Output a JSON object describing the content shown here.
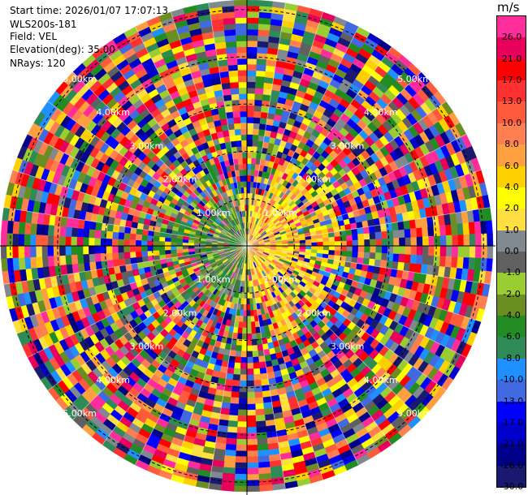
{
  "header": {
    "start_time": "Start time: 2026/01/07 17:07:13",
    "instrument": "WLS200s-181",
    "field": "Field: VEL",
    "elevation": "Elevation(deg): 35.00",
    "nrays": "NRays: 120"
  },
  "colorbar": {
    "unit": "m/s",
    "levels": [
      {
        "label": "26.0",
        "color": "#ff2d9a"
      },
      {
        "label": "21.0",
        "color": "#e8005a"
      },
      {
        "label": "17.0",
        "color": "#ff0000"
      },
      {
        "label": "13.0",
        "color": "#ff3030"
      },
      {
        "label": "10.0",
        "color": "#ff5a3c"
      },
      {
        "label": "8.0",
        "color": "#ff7f50"
      },
      {
        "label": "6.0",
        "color": "#ffa040"
      },
      {
        "label": "4.0",
        "color": "#ffd000"
      },
      {
        "label": "2.0",
        "color": "#ffff00"
      },
      {
        "label": "1.0",
        "color": "#ffe040"
      },
      {
        "label": "0.0",
        "color": "#808890"
      },
      {
        "label": "-1.0",
        "color": "#606060"
      },
      {
        "label": "-2.0",
        "color": "#9acd32"
      },
      {
        "label": "-4.0",
        "color": "#6b8e23"
      },
      {
        "label": "-6.0",
        "color": "#228b22"
      },
      {
        "label": "-8.0",
        "color": "#2e8b57"
      },
      {
        "label": "-10.0",
        "color": "#1e90ff"
      },
      {
        "label": "-13.0",
        "color": "#4169e1"
      },
      {
        "label": "-17.0",
        "color": "#0000ff"
      },
      {
        "label": "-21.0",
        "color": "#0000cd"
      },
      {
        "label": "-26.0",
        "color": "#00008b"
      },
      {
        "label": "-30.0",
        "color": "#191970"
      }
    ]
  },
  "chart_data": {
    "type": "heatmap",
    "projection": "polar-ppi",
    "field": "VEL",
    "elevation_deg": 35.0,
    "n_rays": 120,
    "range_rings_km": [
      {
        "value": 1,
        "label": "1.00km"
      },
      {
        "value": 2,
        "label": "2.00km"
      },
      {
        "value": 3,
        "label": "3.00km"
      },
      {
        "value": 4,
        "label": "4.00km"
      },
      {
        "value": 5,
        "label": "5.00km"
      }
    ],
    "max_range_km": 5.2,
    "ring_label_directions": [
      "NW",
      "NE",
      "SW",
      "SE"
    ],
    "near_range_pattern": {
      "east_sector": "positive velocities (yellow/orange, ~1 to 8 m/s)",
      "west_sector": "near-zero and slightly negative velocities (grey/green)",
      "beyond_2km": "noisy full-range values"
    }
  }
}
